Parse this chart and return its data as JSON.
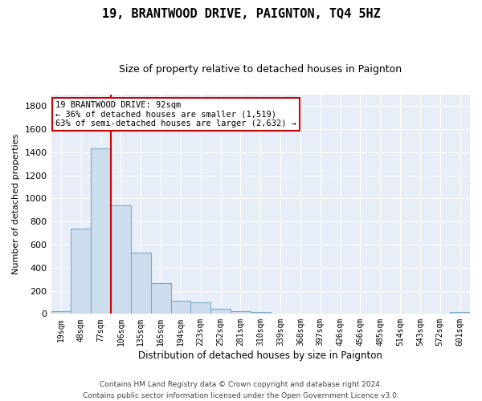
{
  "title": "19, BRANTWOOD DRIVE, PAIGNTON, TQ4 5HZ",
  "subtitle": "Size of property relative to detached houses in Paignton",
  "xlabel": "Distribution of detached houses by size in Paignton",
  "ylabel": "Number of detached properties",
  "categories": [
    "19sqm",
    "48sqm",
    "77sqm",
    "106sqm",
    "135sqm",
    "165sqm",
    "194sqm",
    "223sqm",
    "252sqm",
    "281sqm",
    "310sqm",
    "339sqm",
    "368sqm",
    "397sqm",
    "426sqm",
    "456sqm",
    "485sqm",
    "514sqm",
    "543sqm",
    "572sqm",
    "601sqm"
  ],
  "values": [
    20,
    740,
    1430,
    940,
    530,
    265,
    110,
    100,
    45,
    25,
    15,
    5,
    5,
    5,
    5,
    5,
    5,
    5,
    5,
    5,
    15
  ],
  "bar_color": "#ccdded",
  "bar_edge_color": "#7aaac8",
  "bg_color": "#e8eef8",
  "property_sqm": 92,
  "annotation_line1": "19 BRANTWOOD DRIVE: 92sqm",
  "annotation_line2": "← 36% of detached houses are smaller (1,519)",
  "annotation_line3": "63% of semi-detached houses are larger (2,632) →",
  "annotation_box_color": "#ffffff",
  "annotation_box_edge": "#cc0000",
  "red_line_color": "#cc0000",
  "footer_line1": "Contains HM Land Registry data © Crown copyright and database right 2024.",
  "footer_line2": "Contains public sector information licensed under the Open Government Licence v3.0.",
  "ylim": [
    0,
    1900
  ],
  "yticks": [
    0,
    200,
    400,
    600,
    800,
    1000,
    1200,
    1400,
    1600,
    1800
  ]
}
